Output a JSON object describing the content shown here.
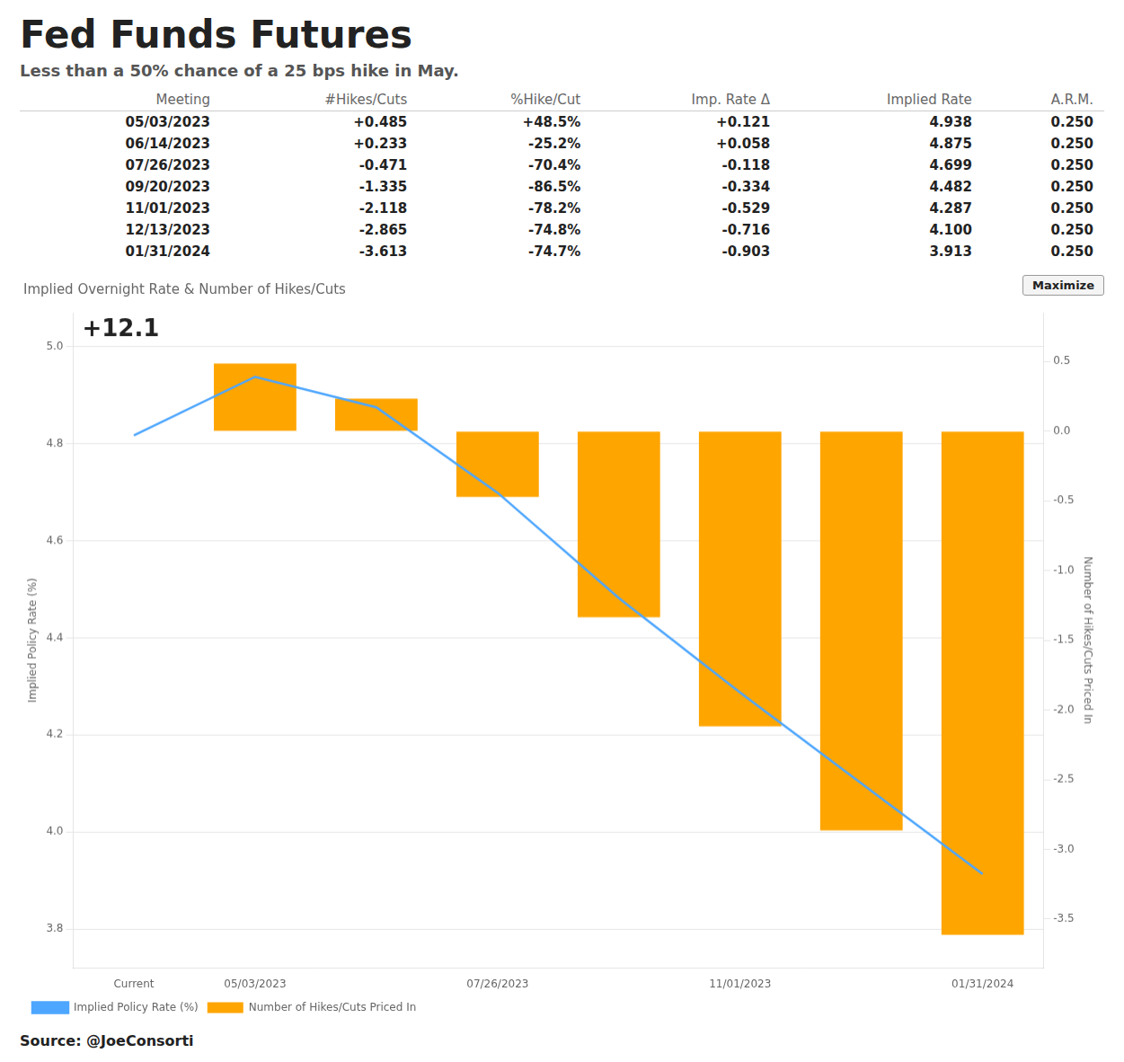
{
  "chart_data": {
    "type": "bar",
    "title": "Fed Funds Futures",
    "subtitle": "Less than a 50% chance of a 25 bps hike in May.",
    "source": "Source: @JoeConsorti",
    "table": {
      "columns": [
        "Meeting",
        "#Hikes/Cuts",
        "%Hike/Cut",
        "Imp. Rate Δ",
        "Implied Rate",
        "A.R.M."
      ],
      "rows": [
        [
          "05/03/2023",
          "+0.485",
          "+48.5%",
          "+0.121",
          "4.938",
          "0.250"
        ],
        [
          "06/14/2023",
          "+0.233",
          "-25.2%",
          "+0.058",
          "4.875",
          "0.250"
        ],
        [
          "07/26/2023",
          "-0.471",
          "-70.4%",
          "-0.118",
          "4.699",
          "0.250"
        ],
        [
          "09/20/2023",
          "-1.335",
          "-86.5%",
          "-0.334",
          "4.482",
          "0.250"
        ],
        [
          "11/01/2023",
          "-2.118",
          "-78.2%",
          "-0.529",
          "4.287",
          "0.250"
        ],
        [
          "12/13/2023",
          "-2.865",
          "-74.8%",
          "-0.716",
          "4.100",
          "0.250"
        ],
        [
          "01/31/2024",
          "-3.613",
          "-74.7%",
          "-0.903",
          "3.913",
          "0.250"
        ]
      ]
    },
    "chart_title": "Implied Overnight Rate & Number of Hikes/Cuts",
    "annotations": [
      "+12.1",
      "Maximize"
    ],
    "categories": [
      "Current",
      "05/03/2023",
      null,
      "07/26/2023",
      null,
      "11/01/2023",
      null,
      "01/31/2024"
    ],
    "series": [
      {
        "name": "Implied Policy Rate (%)",
        "type": "line",
        "color": "#4da6ff",
        "values": [
          4.817,
          4.938,
          4.875,
          4.699,
          4.482,
          4.287,
          4.1,
          3.913
        ]
      },
      {
        "name": "Number of Hikes/Cuts Priced In",
        "type": "bar",
        "color": "#FFA500",
        "axis": "y2",
        "values": [
          0.0,
          0.485,
          0.233,
          -0.471,
          -1.335,
          -2.118,
          -2.865,
          -3.613
        ]
      }
    ],
    "ylabel": "Implied Policy Rate (%)",
    "y2label": "Number of Hikes/Cuts Priced In",
    "ylim": [
      3.72,
      5.07
    ],
    "yticks": [
      3.8,
      {
        "value": 4.0,
        "label": "4.0"
      },
      4.2,
      4.4,
      4.6,
      4.8,
      {
        "value": 5.0,
        "label": "5.0"
      }
    ],
    "y2lim": [
      -3.85,
      0.85
    ],
    "y2ticks": [
      -3.5,
      {
        "value": -3.0,
        "label": "-3.0"
      },
      -2.5,
      {
        "value": -2.0,
        "label": "-2.0"
      },
      -1.5,
      {
        "value": -1.0,
        "label": "-1.0"
      },
      -0.5,
      {
        "value": 0.0,
        "label": "0.0"
      },
      0.5
    ],
    "grid": true,
    "legend": "lower left"
  }
}
